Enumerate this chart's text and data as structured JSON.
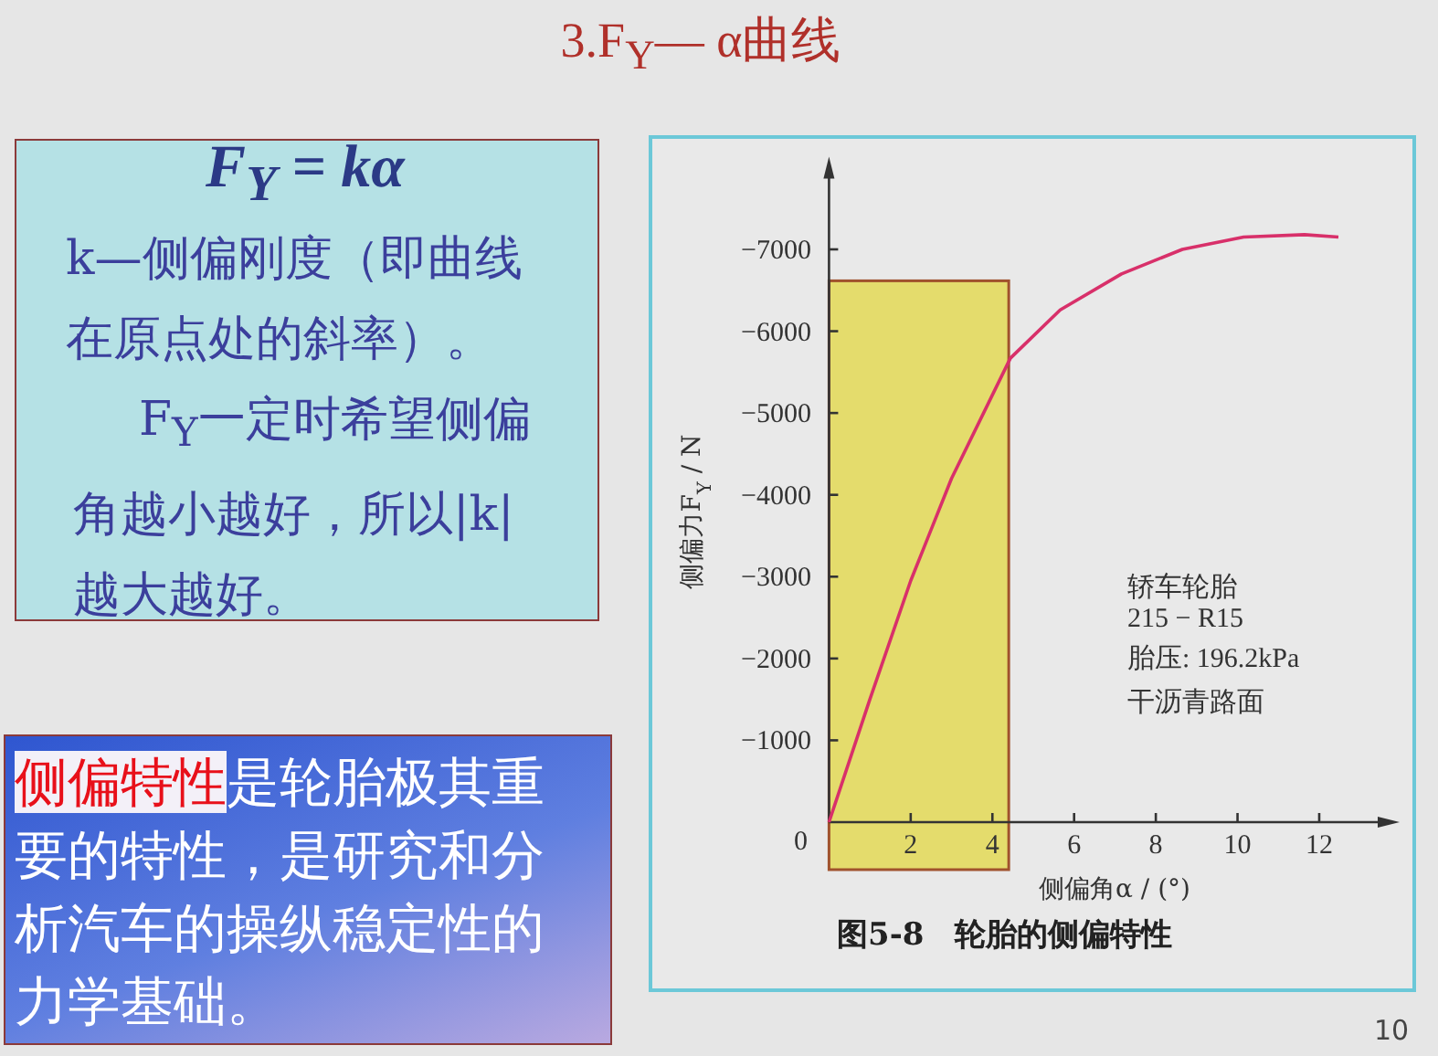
{
  "chart_data": {
    "type": "line",
    "title": "3.F$_{Y}$— α曲线",
    "xlabel": "侧偏角α / (°)",
    "ylabel": "侧偏力F$_{Y}$ / N",
    "x": [
      0,
      1,
      2,
      3,
      4.44,
      5.66,
      7.16,
      8.65,
      10.15,
      11.64,
      12.47
    ],
    "series": [
      {
        "color": "#d8306a",
        "values": [
          0,
          -1500,
          -2950,
          -4200,
          -5670,
          -6260,
          -6700,
          -7000,
          -7150,
          -7180,
          -7150
        ]
      }
    ],
    "xlim": [
      0,
      13.7
    ],
    "ylim": [
      0,
      -8000
    ],
    "xticks": [
      2,
      4,
      6,
      8,
      10,
      12
    ],
    "yticks": [
      0,
      -1000,
      -2000,
      -3000,
      -4000,
      -5000,
      -6000,
      -7000
    ],
    "bands": [
      {
        "axis": "x",
        "from": 0,
        "to": 4.4,
        "color": "#e4dc6c"
      }
    ],
    "grid": false,
    "marker": "none",
    "annotations": [
      "F$_{Y}$ = kα",
      "k—侧偏刚度（即曲线在原点处的斜率）。",
      "F$_{Y}$一定时希望侧偏角越小越好，所以|k| 越大越好。",
      "侧偏特性",
      "是轮胎极其重要的特性，是研究和分析汽车的操纵稳定性的力学基础。",
      "轿车轮胎",
      "215 − R15",
      "胎压: 196.2kPa",
      "干沥青路面",
      "图5-8　轮胎的侧偏特性",
      "10"
    ]
  }
}
